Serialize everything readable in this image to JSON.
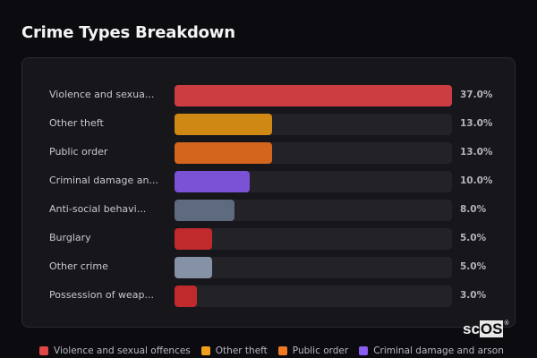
{
  "header": {
    "title": "Crime Types Breakdown"
  },
  "chart_data": {
    "type": "bar",
    "orientation": "horizontal",
    "title": "Crime Types Breakdown",
    "categories": [
      "Violence and sexual offences",
      "Other theft",
      "Public order",
      "Criminal damage and arson",
      "Anti-social behaviour",
      "Burglary",
      "Other crime",
      "Possession of weapons"
    ],
    "display_labels": [
      "Violence and sexua...",
      "Other theft",
      "Public order",
      "Criminal damage an...",
      "Anti-social behavi...",
      "Burglary",
      "Other crime",
      "Possession of weap..."
    ],
    "values": [
      37.0,
      13.0,
      13.0,
      10.0,
      8.0,
      5.0,
      5.0,
      3.0
    ],
    "value_labels": [
      "37.0%",
      "13.0%",
      "13.0%",
      "10.0%",
      "8.0%",
      "5.0%",
      "5.0%",
      "3.0%"
    ],
    "colors": [
      "#cc3d42",
      "#d08815",
      "#d4651c",
      "#7b52d6",
      "#5e6a7e",
      "#c02a2c",
      "#8591a4",
      "#c02a2c"
    ],
    "unit": "%",
    "xlim": [
      0,
      37
    ],
    "grid": false,
    "legend_position": "bottom"
  },
  "legend": [
    {
      "label": "Violence and sexual offences",
      "color": "#e04848"
    },
    {
      "label": "Other theft",
      "color": "#f0a01c"
    },
    {
      "label": "Public order",
      "color": "#f07a24"
    },
    {
      "label": "Criminal damage and arson",
      "color": "#8a5cf0"
    }
  ],
  "watermark": {
    "prefix": "sc",
    "highlight": "OS",
    "mark": "®"
  }
}
